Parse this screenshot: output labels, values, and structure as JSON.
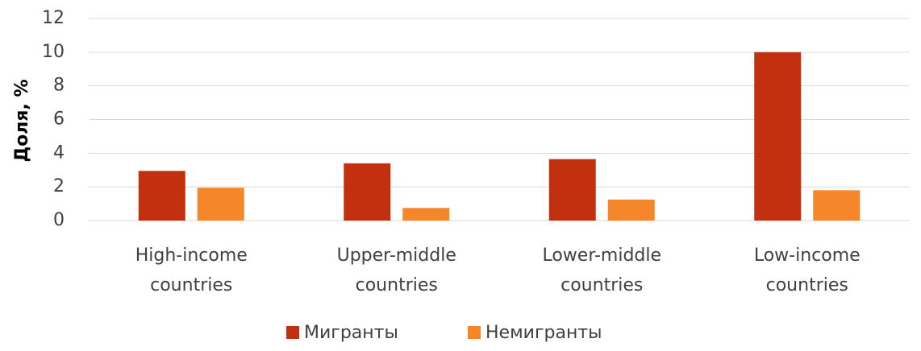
{
  "chart_data": {
    "type": "bar",
    "y_label": "Доля, %",
    "categories": [
      "High-income countries",
      "Upper-middle countries",
      "Lower-middle countries",
      "Low-income countries"
    ],
    "series": [
      {
        "name": "Мигранты",
        "color": "#c2300f",
        "values": [
          2.95,
          3.4,
          3.65,
          10
        ]
      },
      {
        "name": "Немигранты",
        "color": "#f5862a",
        "values": [
          1.95,
          0.75,
          1.25,
          1.8
        ]
      }
    ],
    "ylim": [
      0,
      12
    ],
    "yticks": [
      0,
      2,
      4,
      6,
      8,
      10,
      12
    ],
    "grid": true,
    "legend": "bottom"
  }
}
